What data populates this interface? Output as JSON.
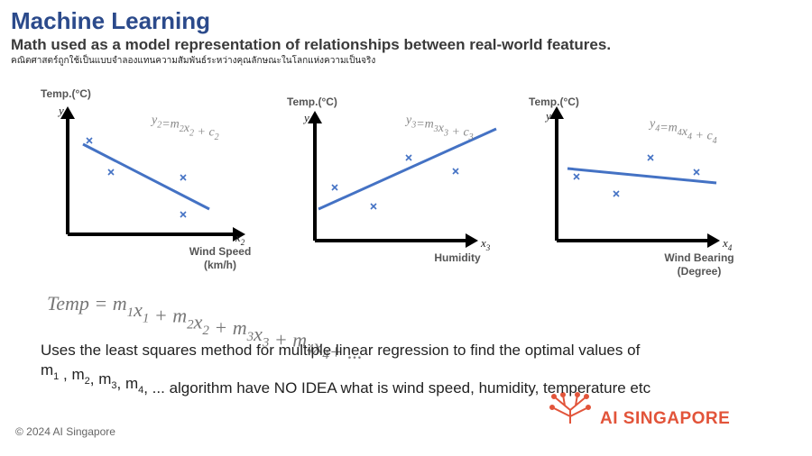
{
  "header": {
    "title": "Machine Learning",
    "subtitle": "Math used as a model representation of relationships between real-world features.",
    "thai": "คณิตศาสตร์ถูกใช้เป็นแบบจำลองแทนความสัมพันธ์ระหว่างคุณลักษณะในโลกแห่งความเป็นจริง"
  },
  "plots": [
    {
      "y_title": "Temp.(°C)",
      "y_axis": "y",
      "x_axis": [
        {
          "t": "x",
          "sub": "2"
        }
      ],
      "x_title": [
        "Wind Speed",
        "(km/h)"
      ],
      "equation": [
        {
          "t": "y",
          "sub": "2"
        },
        {
          "t": "=m",
          "sub": "2"
        },
        {
          "t": "x",
          "sub": "2"
        },
        {
          "t": " + c",
          "sub": "2"
        }
      ]
    },
    {
      "y_title": "Temp.(°C)",
      "y_axis": "y",
      "x_axis": [
        {
          "t": "x",
          "sub": "3"
        }
      ],
      "x_title": [
        "Humidity"
      ],
      "equation": [
        {
          "t": "y",
          "sub": "3"
        },
        {
          "t": "=m",
          "sub": "3"
        },
        {
          "t": "x",
          "sub": "3"
        },
        {
          "t": " + c",
          "sub": "3"
        }
      ]
    },
    {
      "y_title": "Temp.(°C)",
      "y_axis": "y",
      "x_axis": [
        {
          "t": "x",
          "sub": "4"
        }
      ],
      "x_title": [
        "Wind Bearing",
        "(Degree)"
      ],
      "equation": [
        {
          "t": "y",
          "sub": "4"
        },
        {
          "t": "=m",
          "sub": "4"
        },
        {
          "t": "x",
          "sub": "4"
        },
        {
          "t": " + c",
          "sub": "4"
        }
      ]
    }
  ],
  "formula": [
    {
      "t": "Temp = m",
      "sub": "1"
    },
    {
      "t": "x",
      "sub": "1"
    },
    {
      "t": " + m",
      "sub": "2"
    },
    {
      "t": "x",
      "sub": "2"
    },
    {
      "t": "  + m",
      "sub": "3"
    },
    {
      "t": "x",
      "sub": "3"
    },
    {
      "t": " + m",
      "sub": "4"
    },
    {
      "t": "x",
      "sub": "4"
    },
    {
      "t": "+ ..."
    }
  ],
  "body": {
    "line1": "Uses the least squares method for multiple linear regression to find the optimal values of",
    "line2": [
      {
        "t": "m",
        "sub": "1"
      },
      {
        "t": " , m",
        "sub": "2"
      },
      {
        "t": ", m",
        "sub": "3"
      },
      {
        "t": ", m",
        "sub": "4"
      },
      {
        "t": ", ... algorithm have NO IDEA what is wind speed, humidity, temperature etc"
      }
    ]
  },
  "footer": {
    "copyright": "© 2024 AI Singapore",
    "logo": "AI SINGAPORE"
  }
}
